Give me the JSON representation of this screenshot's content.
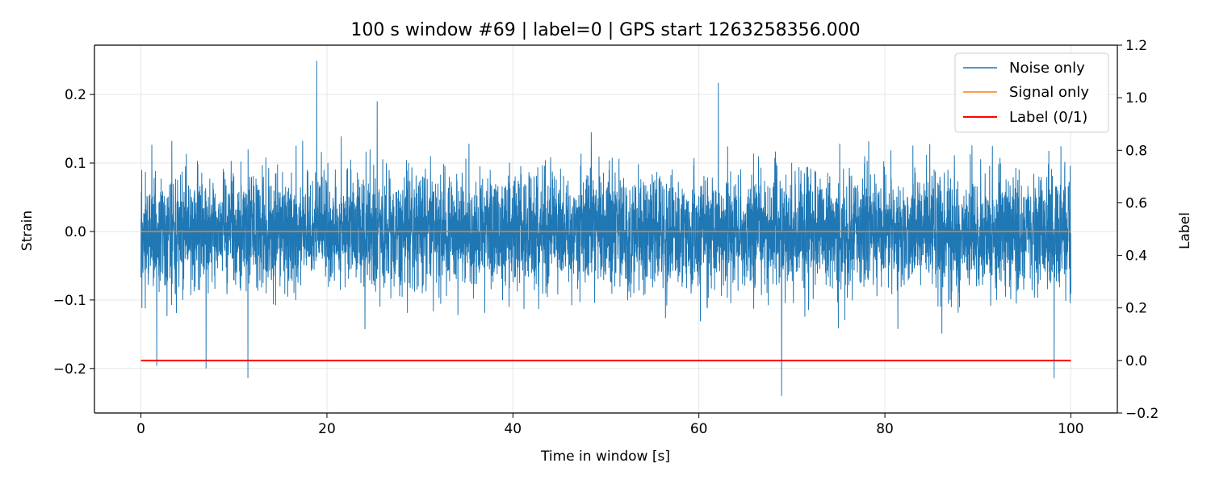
{
  "chart_data": {
    "type": "line",
    "title": "100 s window #69 | label=0 | GPS start 1263258356.000",
    "xlabel": "Time in window [s]",
    "ylabel": "Strain",
    "y2label": "Label",
    "xlim": [
      -5,
      105
    ],
    "ylim": [
      -0.265,
      0.272
    ],
    "y2lim": [
      -0.2,
      1.2
    ],
    "x_ticks": [
      0,
      20,
      40,
      60,
      80,
      100
    ],
    "x_tick_labels": [
      "0",
      "20",
      "40",
      "60",
      "80",
      "100"
    ],
    "y_ticks": [
      -0.2,
      -0.1,
      0.0,
      0.1,
      0.2
    ],
    "y_tick_labels": [
      "−0.2",
      "−0.1",
      "0.0",
      "0.1",
      "0.2"
    ],
    "y2_ticks": [
      -0.2,
      0.0,
      0.2,
      0.4,
      0.6,
      0.8,
      1.0,
      1.2
    ],
    "y2_tick_labels": [
      "−0.2",
      "0.0",
      "0.2",
      "0.4",
      "0.6",
      "0.8",
      "1.0",
      "1.2"
    ],
    "grid": true,
    "legend_position": "top-right",
    "colors": {
      "noise": "#1f77b4",
      "signal": "#ff7f0e",
      "label": "#ff0000"
    },
    "series": [
      {
        "name": "Noise only",
        "axis": "left",
        "style": "dense-noise",
        "x_range": [
          0,
          100
        ],
        "typical_envelope": [
          -0.11,
          0.11
        ],
        "min": -0.24,
        "max": 0.249,
        "notable_peaks": [
          {
            "x": 18.9,
            "y": 0.249
          },
          {
            "x": 25.4,
            "y": 0.19
          },
          {
            "x": 62.1,
            "y": 0.217
          },
          {
            "x": 68.9,
            "y": -0.24
          },
          {
            "x": 11.5,
            "y": -0.214
          },
          {
            "x": 98.2,
            "y": -0.214
          },
          {
            "x": 7.0,
            "y": -0.2
          },
          {
            "x": 1.7,
            "y": -0.196
          }
        ]
      },
      {
        "name": "Signal only",
        "axis": "left",
        "x": [
          0,
          100
        ],
        "y": [
          0.0,
          0.0
        ]
      },
      {
        "name": "Label (0/1)",
        "axis": "right",
        "x": [
          0,
          100
        ],
        "y": [
          0,
          0
        ]
      }
    ]
  }
}
